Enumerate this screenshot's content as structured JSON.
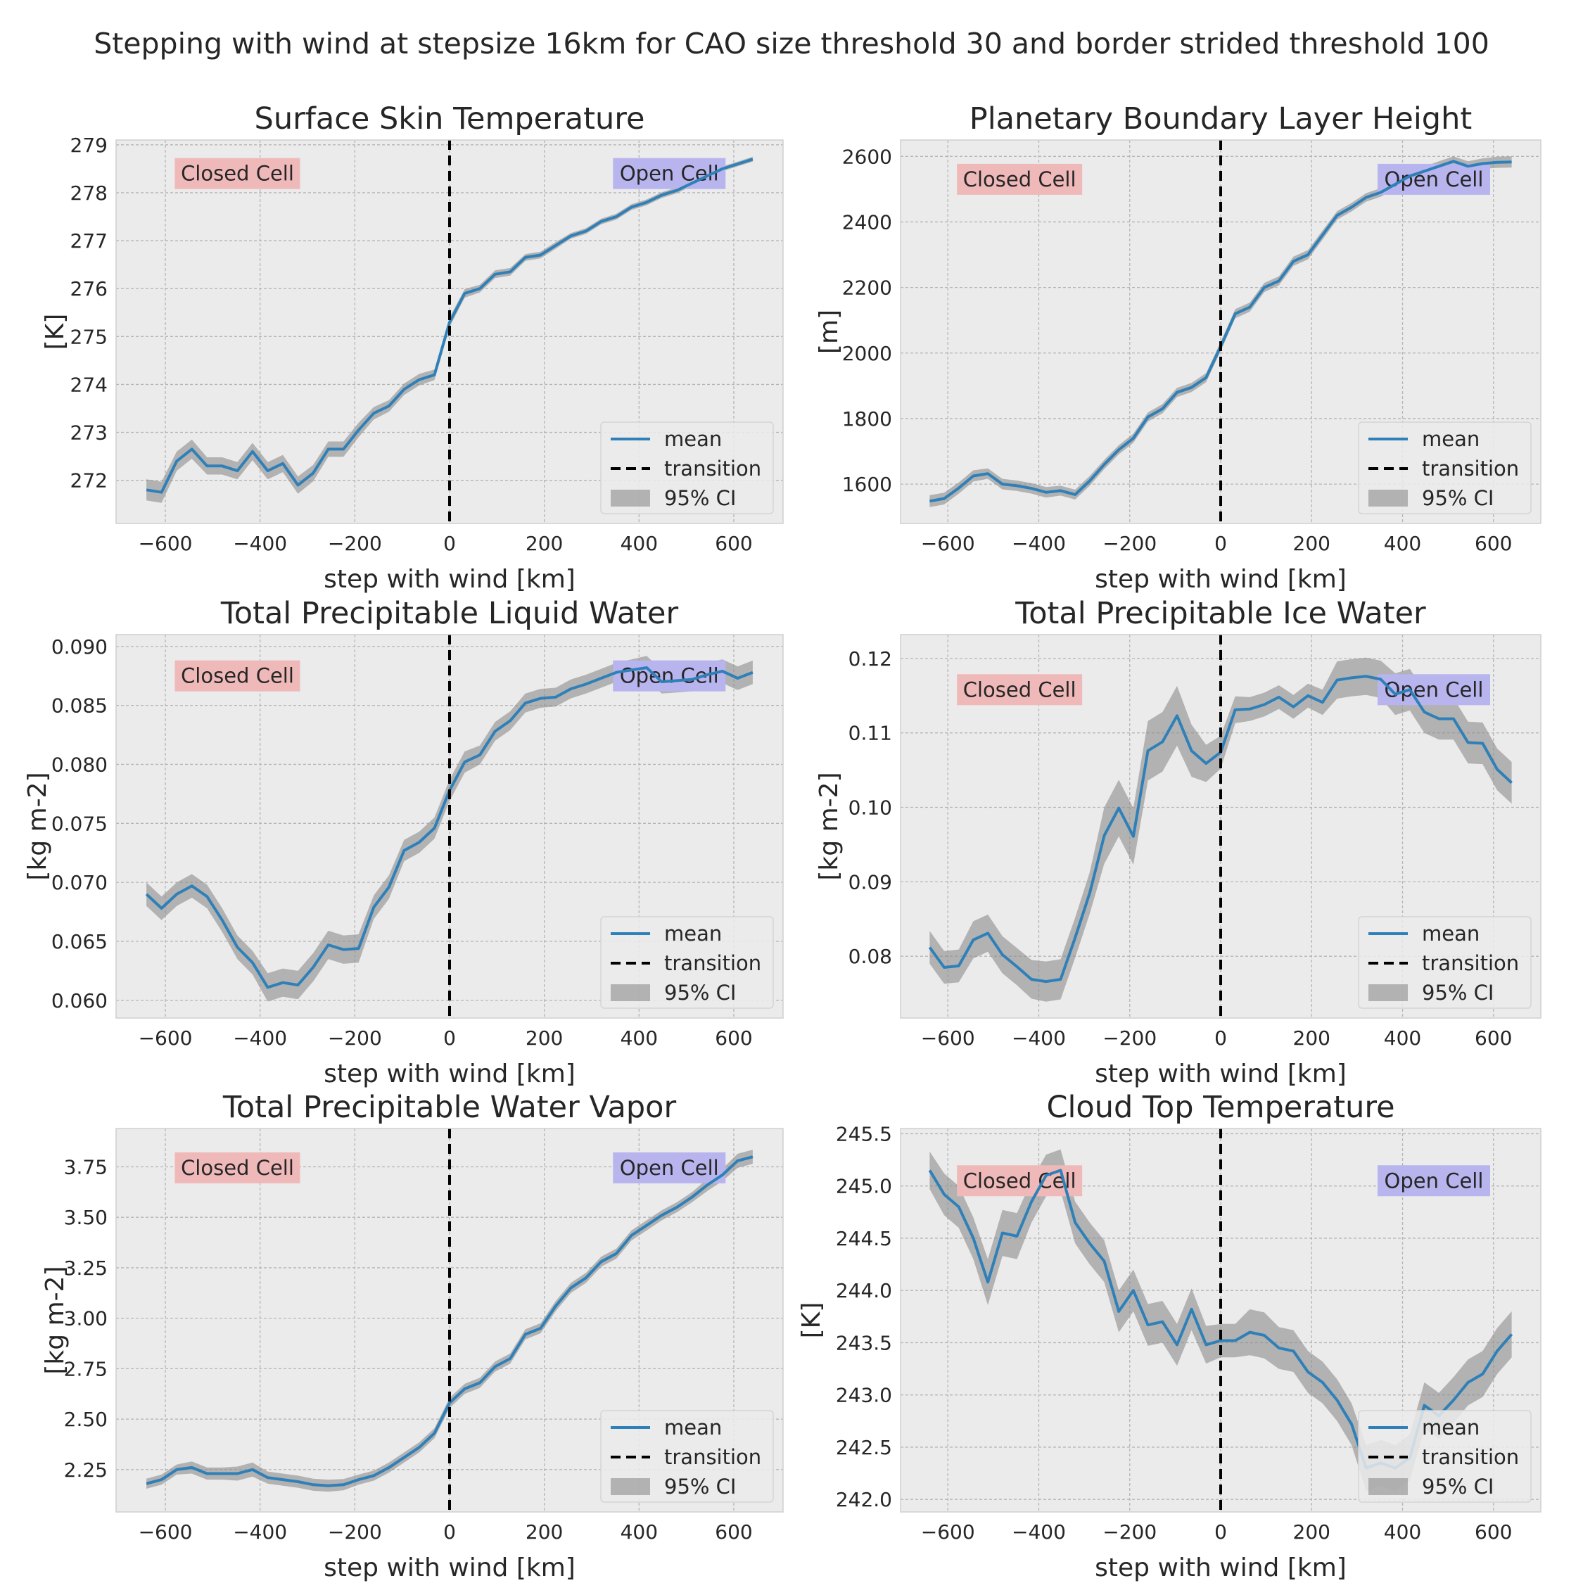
{
  "figure": {
    "suptitle": "Stepping with wind at stepsize 16km for CAO size threshold 30 and border strided threshold 100"
  },
  "colors": {
    "mean": "#2f80b8",
    "ci": "#8c8c8c",
    "transition": "#000000",
    "closed_cell_box": "#f0b9b9",
    "open_cell_box": "#b8b4ee",
    "panel_bg": "#ebebeb"
  },
  "legend": {
    "mean": "mean",
    "transition": "transition",
    "ci": "95% CI",
    "placement": "lower-right"
  },
  "annotations": {
    "closed": "Closed Cell",
    "open": "Open Cell"
  },
  "chart_data": [
    {
      "type": "line",
      "title": "Surface Skin Temperature",
      "xlabel": "step with wind [km]",
      "ylabel": "[K]",
      "xlim": [
        -704,
        704
      ],
      "ylim": [
        271.1,
        279.1
      ],
      "xticks": [
        -600,
        -400,
        -200,
        0,
        200,
        400,
        600
      ],
      "yticks": [
        272,
        273,
        274,
        275,
        276,
        277,
        278,
        279
      ],
      "yticklabels": [
        "272",
        "273",
        "274",
        "275",
        "276",
        "277",
        "278",
        "279"
      ],
      "annotation_y": 278.4,
      "x": [
        -640,
        -608,
        -576,
        -544,
        -512,
        -480,
        -448,
        -416,
        -384,
        -352,
        -320,
        -288,
        -256,
        -224,
        -192,
        -160,
        -128,
        -96,
        -64,
        -32,
        0,
        32,
        64,
        96,
        128,
        160,
        192,
        224,
        256,
        288,
        320,
        352,
        384,
        416,
        448,
        480,
        512,
        544,
        576,
        608,
        640
      ],
      "mean": [
        271.8,
        271.75,
        272.4,
        272.65,
        272.3,
        272.3,
        272.2,
        272.6,
        272.2,
        272.35,
        271.9,
        272.15,
        272.65,
        272.65,
        273.05,
        273.4,
        273.55,
        273.9,
        274.1,
        274.2,
        275.3,
        275.9,
        276.0,
        276.3,
        276.35,
        276.65,
        276.7,
        276.9,
        277.1,
        277.2,
        277.4,
        277.5,
        277.7,
        277.8,
        277.95,
        278.05,
        278.2,
        278.35,
        278.5,
        278.6,
        278.7
      ],
      "ci": [
        0.22,
        0.22,
        0.2,
        0.2,
        0.18,
        0.18,
        0.18,
        0.18,
        0.18,
        0.18,
        0.18,
        0.17,
        0.16,
        0.16,
        0.15,
        0.13,
        0.12,
        0.12,
        0.12,
        0.11,
        0.1,
        0.09,
        0.08,
        0.08,
        0.08,
        0.07,
        0.07,
        0.07,
        0.06,
        0.06,
        0.06,
        0.06,
        0.06,
        0.06,
        0.06,
        0.06,
        0.06,
        0.05,
        0.05,
        0.05,
        0.05
      ]
    },
    {
      "type": "line",
      "title": "Planetary Boundary Layer Height",
      "xlabel": "step with wind [km]",
      "ylabel": "[m]",
      "xlim": [
        -704,
        704
      ],
      "ylim": [
        1480,
        2650
      ],
      "xticks": [
        -600,
        -400,
        -200,
        0,
        200,
        400,
        600
      ],
      "yticks": [
        1600,
        1800,
        2000,
        2200,
        2400,
        2600
      ],
      "yticklabels": [
        "1600",
        "1800",
        "2000",
        "2200",
        "2400",
        "2600"
      ],
      "annotation_y": 2530,
      "x": [
        -640,
        -608,
        -576,
        -544,
        -512,
        -480,
        -448,
        -416,
        -384,
        -352,
        -320,
        -288,
        -256,
        -224,
        -192,
        -160,
        -128,
        -96,
        -64,
        -32,
        0,
        32,
        64,
        96,
        128,
        160,
        192,
        224,
        256,
        288,
        320,
        352,
        384,
        416,
        448,
        480,
        512,
        544,
        576,
        608,
        640
      ],
      "mean": [
        1548,
        1556,
        1588,
        1625,
        1632,
        1600,
        1595,
        1587,
        1575,
        1580,
        1568,
        1610,
        1660,
        1705,
        1740,
        1805,
        1830,
        1880,
        1895,
        1925,
        2020,
        2120,
        2140,
        2200,
        2220,
        2280,
        2300,
        2360,
        2420,
        2445,
        2475,
        2490,
        2515,
        2540,
        2555,
        2570,
        2585,
        2570,
        2578,
        2582,
        2583
      ],
      "ci": [
        18,
        18,
        17,
        17,
        16,
        16,
        16,
        16,
        16,
        15,
        15,
        15,
        14,
        14,
        14,
        14,
        14,
        14,
        14,
        14,
        14,
        14,
        14,
        14,
        14,
        14,
        14,
        14,
        13,
        13,
        13,
        13,
        14,
        14,
        14,
        15,
        15,
        15,
        16,
        17,
        17
      ]
    },
    {
      "type": "line",
      "title": "Total Precipitable Liquid Water",
      "xlabel": "step with wind [km]",
      "ylabel": "[kg m-2]",
      "xlim": [
        -704,
        704
      ],
      "ylim": [
        0.0585,
        0.091
      ],
      "xticks": [
        -600,
        -400,
        -200,
        0,
        200,
        400,
        600
      ],
      "yticks": [
        0.06,
        0.065,
        0.07,
        0.075,
        0.08,
        0.085,
        0.09
      ],
      "yticklabels": [
        "0.060",
        "0.065",
        "0.070",
        "0.075",
        "0.080",
        "0.085",
        "0.090"
      ],
      "annotation_y": 0.0875,
      "x": [
        -640,
        -608,
        -576,
        -544,
        -512,
        -480,
        -448,
        -416,
        -384,
        -352,
        -320,
        -288,
        -256,
        -224,
        -192,
        -160,
        -128,
        -96,
        -64,
        -32,
        0,
        32,
        64,
        96,
        128,
        160,
        192,
        224,
        256,
        288,
        320,
        352,
        384,
        416,
        448,
        480,
        512,
        544,
        576,
        608,
        640
      ],
      "mean": [
        0.069,
        0.0678,
        0.069,
        0.0697,
        0.0688,
        0.0668,
        0.0645,
        0.0632,
        0.0611,
        0.0615,
        0.0613,
        0.0628,
        0.0647,
        0.0643,
        0.0644,
        0.0679,
        0.0696,
        0.0727,
        0.0734,
        0.0746,
        0.0778,
        0.0802,
        0.0808,
        0.0828,
        0.0837,
        0.0852,
        0.0856,
        0.0857,
        0.0864,
        0.0868,
        0.0873,
        0.0878,
        0.088,
        0.0882,
        0.087,
        0.0871,
        0.0872,
        0.0876,
        0.0879,
        0.0873,
        0.0878
      ],
      "ci": [
        0.001,
        0.001,
        0.001,
        0.001,
        0.001,
        0.001,
        0.001,
        0.001,
        0.0012,
        0.0012,
        0.0012,
        0.0012,
        0.0012,
        0.0012,
        0.0012,
        0.001,
        0.001,
        0.0009,
        0.0009,
        0.0009,
        0.0009,
        0.0009,
        0.0008,
        0.0008,
        0.0008,
        0.0008,
        0.0008,
        0.0008,
        0.0008,
        0.0008,
        0.0008,
        0.0008,
        0.0009,
        0.001,
        0.001,
        0.001,
        0.001,
        0.001,
        0.001,
        0.001,
        0.001
      ]
    },
    {
      "type": "line",
      "title": "Total Precipitable Ice Water",
      "xlabel": "step with wind [km]",
      "ylabel": "[kg m-2]",
      "xlim": [
        -704,
        704
      ],
      "ylim": [
        0.0717,
        0.1232
      ],
      "xticks": [
        -600,
        -400,
        -200,
        0,
        200,
        400,
        600
      ],
      "yticks": [
        0.08,
        0.09,
        0.1,
        0.11,
        0.12
      ],
      "yticklabels": [
        "0.08",
        "0.09",
        "0.10",
        "0.11",
        "0.12"
      ],
      "annotation_y": 0.1158,
      "x": [
        -640,
        -608,
        -576,
        -544,
        -512,
        -480,
        -448,
        -416,
        -384,
        -352,
        -320,
        -288,
        -256,
        -224,
        -192,
        -160,
        -128,
        -96,
        -64,
        -32,
        0,
        32,
        64,
        96,
        128,
        160,
        192,
        224,
        256,
        288,
        320,
        352,
        384,
        416,
        448,
        480,
        512,
        544,
        576,
        608,
        640
      ],
      "mean": [
        0.0812,
        0.0785,
        0.0787,
        0.0822,
        0.0831,
        0.0802,
        0.0786,
        0.0769,
        0.0766,
        0.0769,
        0.0825,
        0.0885,
        0.0962,
        0.0999,
        0.0961,
        0.1076,
        0.1088,
        0.1123,
        0.1076,
        0.1059,
        0.1074,
        0.1131,
        0.1132,
        0.1138,
        0.1148,
        0.1135,
        0.115,
        0.1141,
        0.1171,
        0.1174,
        0.1176,
        0.1172,
        0.1152,
        0.1158,
        0.1128,
        0.1119,
        0.1119,
        0.1087,
        0.1086,
        0.1051,
        0.1033
      ],
      "ci": [
        0.0022,
        0.0022,
        0.0022,
        0.0025,
        0.0025,
        0.0025,
        0.0025,
        0.0026,
        0.0027,
        0.0027,
        0.0027,
        0.0028,
        0.0038,
        0.0038,
        0.0038,
        0.004,
        0.004,
        0.004,
        0.0035,
        0.0025,
        0.0022,
        0.0018,
        0.0016,
        0.0016,
        0.0016,
        0.0016,
        0.0016,
        0.0017,
        0.0025,
        0.0025,
        0.0025,
        0.0025,
        0.0028,
        0.0028,
        0.0028,
        0.0028,
        0.0028,
        0.0028,
        0.0028,
        0.0028,
        0.0028
      ]
    },
    {
      "type": "line",
      "title": "Total Precipitable Water Vapor",
      "xlabel": "step with wind [km]",
      "ylabel": "[kg m-2]",
      "xlim": [
        -704,
        704
      ],
      "ylim": [
        2.04,
        3.94
      ],
      "xticks": [
        -600,
        -400,
        -200,
        0,
        200,
        400,
        600
      ],
      "yticks": [
        2.25,
        2.5,
        2.75,
        3.0,
        3.25,
        3.5,
        3.75
      ],
      "yticklabels": [
        "2.25",
        "2.50",
        "2.75",
        "3.00",
        "3.25",
        "3.50",
        "3.75"
      ],
      "annotation_y": 3.745,
      "x": [
        -640,
        -608,
        -576,
        -544,
        -512,
        -480,
        -448,
        -416,
        -384,
        -352,
        -320,
        -288,
        -256,
        -224,
        -192,
        -160,
        -128,
        -96,
        -64,
        -32,
        0,
        32,
        64,
        96,
        128,
        160,
        192,
        224,
        256,
        288,
        320,
        352,
        384,
        416,
        448,
        480,
        512,
        544,
        576,
        608,
        640
      ],
      "mean": [
        2.18,
        2.2,
        2.25,
        2.26,
        2.23,
        2.23,
        2.23,
        2.25,
        2.21,
        2.2,
        2.19,
        2.175,
        2.17,
        2.175,
        2.2,
        2.22,
        2.26,
        2.31,
        2.36,
        2.43,
        2.58,
        2.65,
        2.68,
        2.76,
        2.8,
        2.92,
        2.95,
        3.06,
        3.15,
        3.2,
        3.28,
        3.32,
        3.41,
        3.46,
        3.51,
        3.55,
        3.6,
        3.66,
        3.71,
        3.78,
        3.8
      ],
      "ci": [
        0.025,
        0.025,
        0.025,
        0.03,
        0.03,
        0.03,
        0.035,
        0.035,
        0.03,
        0.03,
        0.03,
        0.03,
        0.03,
        0.028,
        0.025,
        0.025,
        0.025,
        0.025,
        0.025,
        0.025,
        0.025,
        0.025,
        0.025,
        0.025,
        0.025,
        0.025,
        0.025,
        0.025,
        0.025,
        0.025,
        0.025,
        0.025,
        0.025,
        0.025,
        0.025,
        0.025,
        0.025,
        0.03,
        0.03,
        0.035,
        0.035
      ]
    },
    {
      "type": "line",
      "title": "Cloud Top Temperature",
      "xlabel": "step with wind [km]",
      "ylabel": "[K]",
      "xlim": [
        -704,
        704
      ],
      "ylim": [
        241.88,
        245.55
      ],
      "xticks": [
        -600,
        -400,
        -200,
        0,
        200,
        400,
        600
      ],
      "yticks": [
        242.0,
        242.5,
        243.0,
        243.5,
        244.0,
        244.5,
        245.0,
        245.5
      ],
      "yticklabels": [
        "242.0",
        "242.5",
        "243.0",
        "243.5",
        "244.0",
        "244.5",
        "245.0",
        "245.5"
      ],
      "annotation_y": 245.05,
      "x": [
        -640,
        -608,
        -576,
        -544,
        -512,
        -480,
        -448,
        -416,
        -384,
        -352,
        -320,
        -288,
        -256,
        -224,
        -192,
        -160,
        -128,
        -96,
        -64,
        -32,
        0,
        32,
        64,
        96,
        128,
        160,
        192,
        224,
        256,
        288,
        320,
        352,
        384,
        416,
        448,
        480,
        512,
        544,
        576,
        608,
        640
      ],
      "mean": [
        245.15,
        244.92,
        244.8,
        244.5,
        244.08,
        244.55,
        244.52,
        244.85,
        245.1,
        245.15,
        244.65,
        244.45,
        244.28,
        243.8,
        244.0,
        243.67,
        243.7,
        243.48,
        243.82,
        243.48,
        243.52,
        243.52,
        243.6,
        243.57,
        243.45,
        243.42,
        243.22,
        243.12,
        242.95,
        242.72,
        242.3,
        242.35,
        242.3,
        242.4,
        242.9,
        242.8,
        242.95,
        243.12,
        243.2,
        243.42,
        243.58
      ],
      "ci": [
        0.18,
        0.2,
        0.2,
        0.2,
        0.22,
        0.22,
        0.22,
        0.2,
        0.2,
        0.2,
        0.2,
        0.2,
        0.2,
        0.2,
        0.2,
        0.2,
        0.2,
        0.2,
        0.2,
        0.18,
        0.16,
        0.16,
        0.22,
        0.22,
        0.2,
        0.2,
        0.2,
        0.2,
        0.2,
        0.2,
        0.22,
        0.22,
        0.22,
        0.22,
        0.22,
        0.22,
        0.22,
        0.22,
        0.22,
        0.22,
        0.22
      ]
    }
  ]
}
